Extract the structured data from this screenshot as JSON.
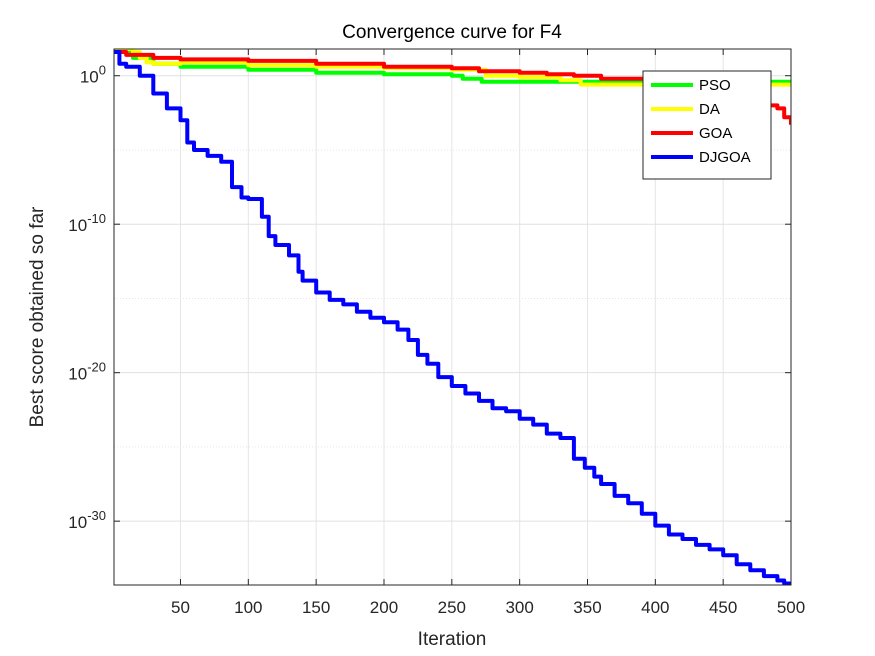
{
  "chart_data": {
    "type": "line",
    "title": "Convergence curve for F4",
    "xlabel": "Iteration",
    "ylabel": "Best score obtained so far",
    "xlim": [
      1,
      500
    ],
    "ylim_log10": [
      -34.3,
      1.8
    ],
    "yscale": "log",
    "grid": true,
    "legend_position": "top-right",
    "x_ticks": [
      50,
      100,
      150,
      200,
      250,
      300,
      350,
      400,
      450,
      500
    ],
    "y_ticks": [
      {
        "label_base": "10",
        "label_exp": "0",
        "log10": 0
      },
      {
        "label_base": "10",
        "label_exp": "-10",
        "log10": -10
      },
      {
        "label_base": "10",
        "label_exp": "-20",
        "log10": -20
      },
      {
        "label_base": "10",
        "label_exp": "-30",
        "log10": -30
      }
    ],
    "series": [
      {
        "name": "PSO",
        "color": "#00ff00",
        "x": [
          1,
          15,
          30,
          50,
          100,
          150,
          200,
          250,
          258,
          272,
          300,
          330,
          360,
          380,
          420,
          460,
          500
        ],
        "log10_y": [
          1.6,
          1.2,
          0.8,
          0.6,
          0.4,
          0.2,
          0.1,
          0.0,
          -0.2,
          -0.4,
          -0.4,
          -0.4,
          -0.4,
          -0.4,
          -0.4,
          -0.4,
          -0.4
        ]
      },
      {
        "name": "DA",
        "color": "#ffff00",
        "x": [
          1,
          10,
          15,
          20,
          25,
          30,
          50,
          100,
          150,
          200,
          250,
          270,
          275,
          300,
          330,
          345,
          350,
          380,
          420,
          460,
          500
        ],
        "log10_y": [
          1.8,
          1.8,
          1.6,
          1.2,
          0.9,
          0.8,
          0.9,
          0.7,
          0.6,
          0.5,
          0.4,
          0.4,
          0.0,
          -0.1,
          -0.3,
          -0.6,
          -0.6,
          -0.6,
          -0.6,
          -0.6,
          -0.6
        ]
      },
      {
        "name": "GOA",
        "color": "#ff0000",
        "x": [
          1,
          10,
          30,
          50,
          100,
          150,
          200,
          250,
          270,
          300,
          320,
          340,
          360,
          380,
          400,
          420,
          440,
          460,
          470,
          480,
          490,
          495,
          500
        ],
        "log10_y": [
          1.6,
          1.4,
          1.2,
          1.1,
          1.0,
          0.8,
          0.6,
          0.5,
          0.3,
          0.2,
          0.1,
          0.0,
          -0.2,
          -0.2,
          -0.3,
          -0.4,
          -0.6,
          -1.0,
          -1.4,
          -2.0,
          -2.2,
          -2.8,
          -3.3
        ]
      },
      {
        "name": "DJGOA",
        "color": "#0000ff",
        "x": [
          1,
          5,
          10,
          20,
          30,
          40,
          50,
          55,
          60,
          70,
          80,
          88,
          95,
          100,
          110,
          115,
          120,
          130,
          137,
          140,
          150,
          160,
          170,
          180,
          190,
          200,
          210,
          218,
          225,
          232,
          240,
          250,
          260,
          270,
          280,
          290,
          300,
          310,
          320,
          330,
          340,
          348,
          355,
          360,
          370,
          380,
          390,
          400,
          410,
          420,
          430,
          440,
          450,
          460,
          470,
          480,
          490,
          495,
          500
        ],
        "log10_y": [
          1.6,
          0.8,
          0.6,
          0.0,
          -1.2,
          -2.2,
          -3.0,
          -4.5,
          -5.0,
          -5.4,
          -5.8,
          -7.5,
          -8.2,
          -8.3,
          -9.5,
          -10.8,
          -11.4,
          -12.1,
          -13.2,
          -13.8,
          -14.6,
          -15.1,
          -15.4,
          -15.9,
          -16.3,
          -16.6,
          -17.1,
          -17.8,
          -18.8,
          -19.4,
          -20.3,
          -20.9,
          -21.4,
          -21.9,
          -22.4,
          -22.6,
          -23.1,
          -23.5,
          -24.1,
          -24.4,
          -25.8,
          -26.4,
          -27.0,
          -27.5,
          -28.3,
          -28.8,
          -29.5,
          -30.3,
          -30.9,
          -31.2,
          -31.6,
          -31.9,
          -32.3,
          -32.9,
          -33.3,
          -33.7,
          -34.0,
          -34.2,
          -34.3
        ]
      }
    ]
  }
}
